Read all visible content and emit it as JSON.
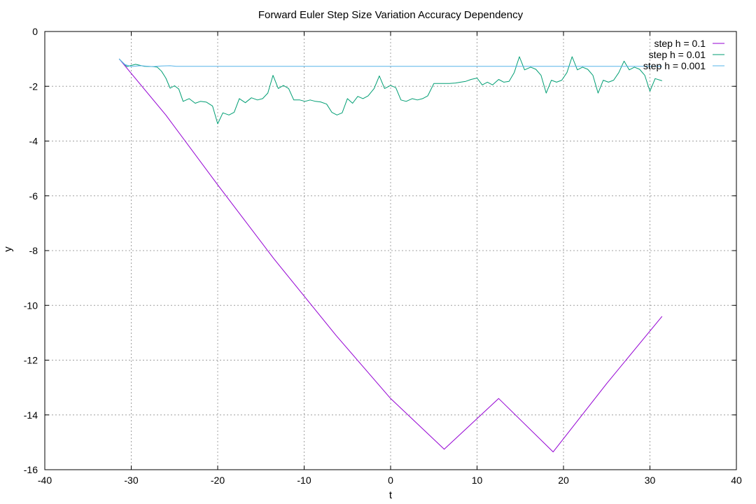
{
  "chart_data": {
    "type": "line",
    "title": "Forward Euler Step Size Variation Accuracy Dependency",
    "xlabel": "t",
    "ylabel": "y",
    "xlim": [
      -40,
      40
    ],
    "ylim": [
      -16,
      0
    ],
    "xticks": [
      -40,
      -30,
      -20,
      -10,
      0,
      10,
      20,
      30,
      40
    ],
    "yticks": [
      0,
      -2,
      -4,
      -6,
      -8,
      -10,
      -12,
      -14,
      -16
    ],
    "grid": true,
    "legend_position": "top-right",
    "series": [
      {
        "name": "step h = 0.1",
        "color": "#9400d3",
        "points": [
          [
            -31.4,
            -1.0
          ],
          [
            -26.0,
            -3.05
          ],
          [
            -20.0,
            -5.6
          ],
          [
            -13.5,
            -8.3
          ],
          [
            -6.3,
            -11.1
          ],
          [
            0.0,
            -13.4
          ],
          [
            6.2,
            -15.25
          ],
          [
            12.5,
            -13.4
          ],
          [
            18.8,
            -15.35
          ],
          [
            25.0,
            -12.85
          ],
          [
            31.4,
            -10.4
          ]
        ]
      },
      {
        "name": "step h = 0.01",
        "color": "#009e73",
        "points": [
          [
            -31.4,
            -1.0
          ],
          [
            -30.5,
            -1.28
          ],
          [
            -29.5,
            -1.2
          ],
          [
            -28.5,
            -1.27
          ],
          [
            -27.5,
            -1.28
          ],
          [
            -27.0,
            -1.3
          ],
          [
            -26.5,
            -1.45
          ],
          [
            -26.0,
            -1.7
          ],
          [
            -25.5,
            -2.07
          ],
          [
            -25.0,
            -1.98
          ],
          [
            -24.5,
            -2.1
          ],
          [
            -24.0,
            -2.55
          ],
          [
            -23.3,
            -2.45
          ],
          [
            -22.6,
            -2.62
          ],
          [
            -22.0,
            -2.55
          ],
          [
            -21.3,
            -2.58
          ],
          [
            -20.6,
            -2.72
          ],
          [
            -20.0,
            -3.37
          ],
          [
            -19.4,
            -2.97
          ],
          [
            -18.7,
            -3.05
          ],
          [
            -18.1,
            -2.95
          ],
          [
            -17.5,
            -2.45
          ],
          [
            -16.8,
            -2.6
          ],
          [
            -16.1,
            -2.42
          ],
          [
            -15.4,
            -2.5
          ],
          [
            -14.8,
            -2.45
          ],
          [
            -14.2,
            -2.25
          ],
          [
            -13.6,
            -1.6
          ],
          [
            -13.0,
            -2.08
          ],
          [
            -12.4,
            -1.97
          ],
          [
            -11.8,
            -2.08
          ],
          [
            -11.2,
            -2.5
          ],
          [
            -10.5,
            -2.5
          ],
          [
            -9.9,
            -2.55
          ],
          [
            -9.3,
            -2.5
          ],
          [
            -8.7,
            -2.55
          ],
          [
            -8.1,
            -2.57
          ],
          [
            -7.4,
            -2.65
          ],
          [
            -6.8,
            -2.95
          ],
          [
            -6.2,
            -3.05
          ],
          [
            -5.6,
            -2.97
          ],
          [
            -5.0,
            -2.45
          ],
          [
            -4.4,
            -2.62
          ],
          [
            -3.8,
            -2.37
          ],
          [
            -3.2,
            -2.45
          ],
          [
            -2.6,
            -2.35
          ],
          [
            -1.9,
            -2.08
          ],
          [
            -1.3,
            -1.62
          ],
          [
            -0.7,
            -2.08
          ],
          [
            0.0,
            -1.97
          ],
          [
            0.6,
            -2.05
          ],
          [
            1.2,
            -2.5
          ],
          [
            1.8,
            -2.55
          ],
          [
            2.5,
            -2.45
          ],
          [
            3.1,
            -2.5
          ],
          [
            3.7,
            -2.45
          ],
          [
            4.3,
            -2.35
          ],
          [
            5.0,
            -1.9
          ],
          [
            5.6,
            -1.9
          ],
          [
            6.2,
            -1.9
          ],
          [
            6.8,
            -1.9
          ],
          [
            7.5,
            -1.88
          ],
          [
            8.1,
            -1.85
          ],
          [
            8.7,
            -1.82
          ],
          [
            9.3,
            -1.75
          ],
          [
            10.0,
            -1.7
          ],
          [
            10.6,
            -1.95
          ],
          [
            11.2,
            -1.85
          ],
          [
            11.8,
            -1.95
          ],
          [
            12.5,
            -1.75
          ],
          [
            13.1,
            -1.85
          ],
          [
            13.7,
            -1.82
          ],
          [
            14.3,
            -1.5
          ],
          [
            14.9,
            -0.92
          ],
          [
            15.5,
            -1.4
          ],
          [
            16.2,
            -1.3
          ],
          [
            16.8,
            -1.38
          ],
          [
            17.4,
            -1.6
          ],
          [
            18.0,
            -2.25
          ],
          [
            18.6,
            -1.78
          ],
          [
            19.2,
            -1.85
          ],
          [
            19.8,
            -1.78
          ],
          [
            20.4,
            -1.5
          ],
          [
            21.0,
            -0.92
          ],
          [
            21.6,
            -1.4
          ],
          [
            22.2,
            -1.3
          ],
          [
            22.8,
            -1.38
          ],
          [
            23.4,
            -1.6
          ],
          [
            24.0,
            -2.25
          ],
          [
            24.6,
            -1.78
          ],
          [
            25.2,
            -1.85
          ],
          [
            25.8,
            -1.78
          ],
          [
            26.4,
            -1.5
          ],
          [
            27.0,
            -1.08
          ],
          [
            27.6,
            -1.4
          ],
          [
            28.2,
            -1.3
          ],
          [
            28.8,
            -1.38
          ],
          [
            29.4,
            -1.6
          ],
          [
            30.0,
            -2.18
          ],
          [
            30.6,
            -1.72
          ],
          [
            31.4,
            -1.8
          ]
        ]
      },
      {
        "name": "step h = 0.001",
        "color": "#56b4e9",
        "points": [
          [
            -31.4,
            -1.0
          ],
          [
            -30.8,
            -1.2
          ],
          [
            -30.0,
            -1.28
          ],
          [
            -29.0,
            -1.25
          ],
          [
            -27.5,
            -1.28
          ],
          [
            -26.5,
            -1.26
          ],
          [
            -25.5,
            -1.25
          ],
          [
            -24.8,
            -1.27
          ],
          [
            0.0,
            -1.27
          ],
          [
            31.4,
            -1.27
          ]
        ]
      }
    ]
  }
}
